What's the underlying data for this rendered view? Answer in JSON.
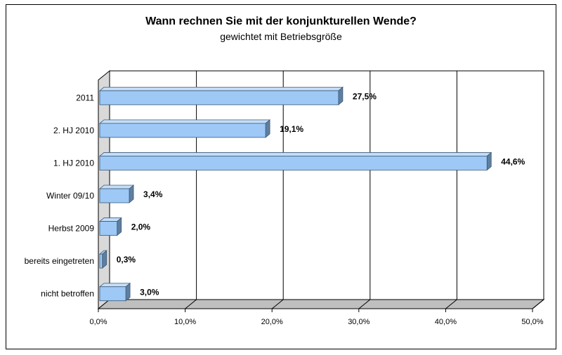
{
  "chart_data": {
    "type": "bar",
    "orientation": "horizontal",
    "title": "Wann rechnen Sie mit der konjunkturellen Wende?",
    "subtitle": "gewichtet mit Betriebsgröße",
    "categories": [
      "2011",
      "2. HJ 2010",
      "1. HJ 2010",
      "Winter 09/10",
      "Herbst 2009",
      "bereits eingetreten",
      "nicht betroffen"
    ],
    "values": [
      27.5,
      19.1,
      44.6,
      3.4,
      2.0,
      0.3,
      3.0
    ],
    "data_labels": [
      "27,5%",
      "19,1%",
      "44,6%",
      "3,4%",
      "2,0%",
      "0,3%",
      "3,0%"
    ],
    "xlim": [
      0,
      50
    ],
    "xticks": [
      0,
      10,
      20,
      30,
      40,
      50
    ],
    "xtick_labels": [
      "0,0%",
      "10,0%",
      "20,0%",
      "30,0%",
      "40,0%",
      "50,0%"
    ],
    "grid": true,
    "legend": "none",
    "bar_color": "#9ec8f5",
    "bar_side_color": "#5f7fa0",
    "bar_top_color": "#c4def8",
    "wall_color": "#ffffff"
  }
}
